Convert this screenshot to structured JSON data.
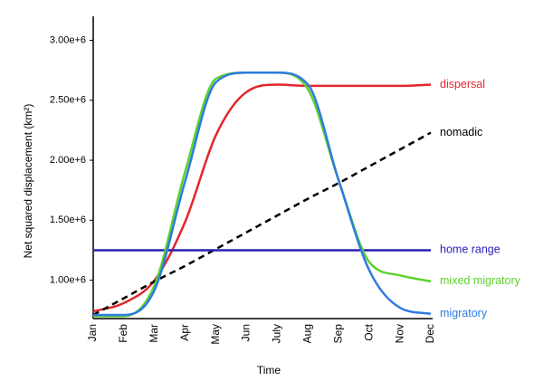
{
  "chart_data": {
    "type": "line",
    "xlabel": "Time",
    "ylabel": "Net squared displacement (km²)",
    "categories": [
      "Jan",
      "Feb",
      "Mar",
      "Apr",
      "May",
      "Jun",
      "July",
      "Aug",
      "Sep",
      "Oct",
      "Nov",
      "Dec"
    ],
    "ylim": [
      680000,
      3200000
    ],
    "yticks": [
      {
        "value": 1000000,
        "label": "1.00e+6"
      },
      {
        "value": 1500000,
        "label": "1.50e+6"
      },
      {
        "value": 2000000,
        "label": "2.00e+6"
      },
      {
        "value": 2500000,
        "label": "2.50e+6"
      },
      {
        "value": 3000000,
        "label": "3.00e+6"
      }
    ],
    "grid": false,
    "series": [
      {
        "name": "dispersal",
        "color": "#e3262c",
        "style": "solid",
        "values": [
          740000,
          810000,
          1000000,
          1490000,
          2210000,
          2570000,
          2630000,
          2620000,
          2620000,
          2620000,
          2620000,
          2630000
        ]
      },
      {
        "name": "nomadic",
        "color": "#000000",
        "style": "dashed",
        "values": [
          710000,
          850000,
          990000,
          1120000,
          1260000,
          1400000,
          1540000,
          1680000,
          1810000,
          1950000,
          2090000,
          2230000
        ]
      },
      {
        "name": "home range",
        "color": "#2a1fb5",
        "style": "solid",
        "values": [
          1250000,
          1250000,
          1250000,
          1250000,
          1250000,
          1250000,
          1250000,
          1250000,
          1250000,
          1250000,
          1250000,
          1250000
        ]
      },
      {
        "name": "mixed migratory",
        "color": "#5fd12e",
        "style": "solid",
        "values": [
          700000,
          700000,
          960000,
          1910000,
          2680000,
          2730000,
          2730000,
          2590000,
          1830000,
          1150000,
          1040000,
          990000
        ]
      },
      {
        "name": "migratory",
        "color": "#2e7be0",
        "style": "solid",
        "values": [
          710000,
          710000,
          920000,
          1830000,
          2650000,
          2730000,
          2730000,
          2630000,
          1830000,
          1080000,
          770000,
          720000
        ]
      }
    ]
  }
}
